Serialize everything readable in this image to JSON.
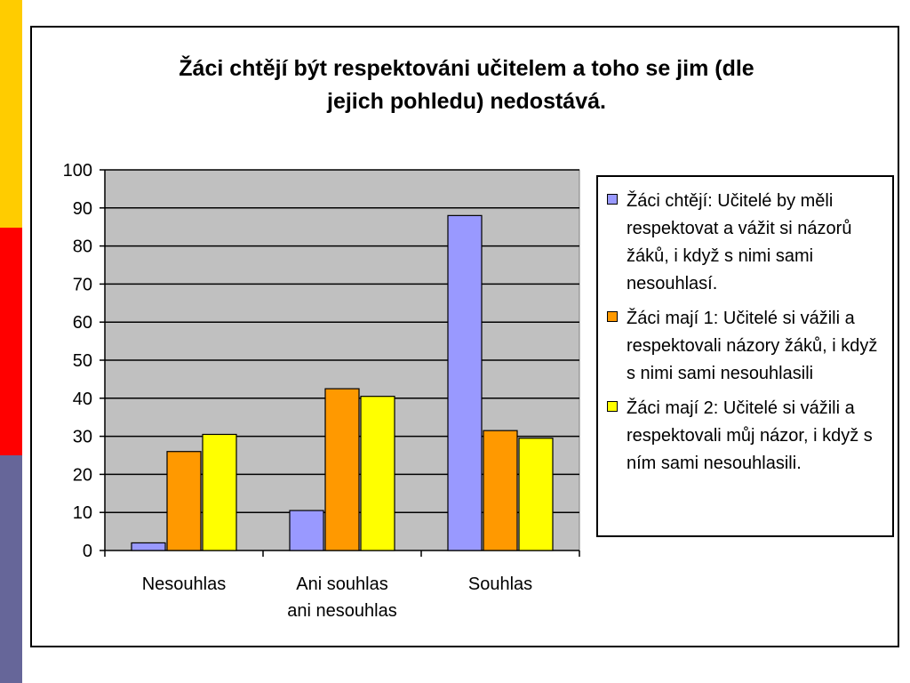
{
  "colors": {
    "stripe_top": "#FFCC00",
    "stripe_mid": "#FF0000",
    "stripe_bottom": "#666699",
    "plot_area": "#C0C0C0"
  },
  "chart_data": {
    "type": "bar",
    "title_lines": [
      "Žáci chtějí být respektováni učitelem a toho se jim (dle",
      "jejich pohledu) nedostává."
    ],
    "categories": [
      [
        "Nesouhlas"
      ],
      [
        "Ani souhlas",
        "ani nesouhlas"
      ],
      [
        "Souhlas"
      ]
    ],
    "series": [
      {
        "name": "Žáci chtějí: Učitelé by měli respektovat a vážit si názorů žáků, i když s nimi sami nesouhlasí.",
        "color": "#9999FF",
        "values": [
          2,
          10.5,
          88
        ]
      },
      {
        "name": "Žáci mají 1: Učitelé si vážili a respektovali názory žáků, i když s nimi sami nesouhlasili",
        "color": "#FF9900",
        "values": [
          26,
          42.5,
          31.5
        ]
      },
      {
        "name": "Žáci mají 2: Učitelé si vážili a respektovali můj názor, i když s ním sami nesouhlasili.",
        "color": "#FFFF00",
        "values": [
          30.5,
          40.5,
          29.5
        ]
      }
    ],
    "ylim": [
      0,
      100
    ],
    "yticks": [
      0,
      10,
      20,
      30,
      40,
      50,
      60,
      70,
      80,
      90,
      100
    ],
    "grid": true,
    "legend_position": "right"
  }
}
